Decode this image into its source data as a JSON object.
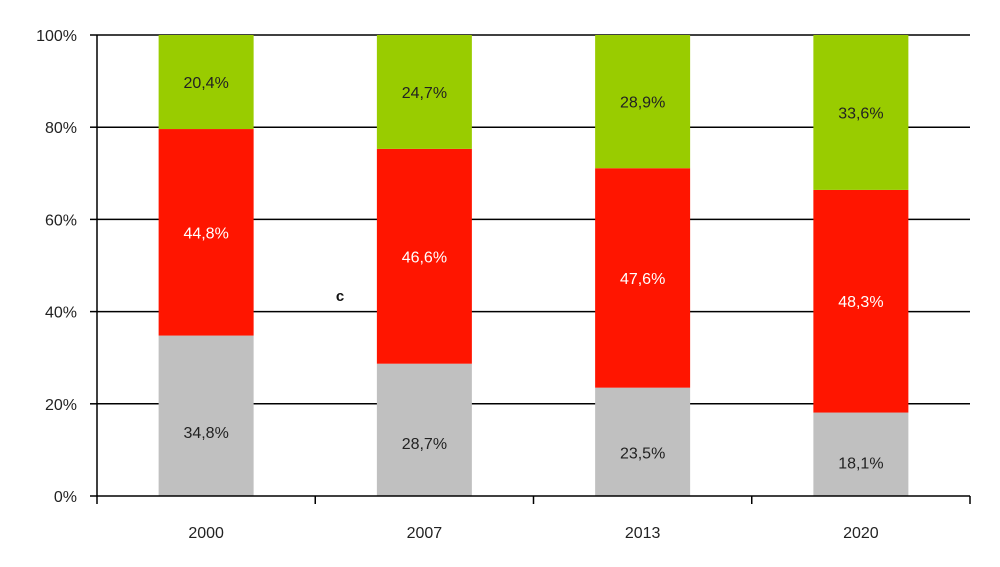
{
  "chart_data": {
    "type": "bar",
    "stacked": true,
    "percent_stacked": true,
    "categories": [
      "2000",
      "2007",
      "2013",
      "2020"
    ],
    "series": [
      {
        "values": [
          34.8,
          28.7,
          23.5,
          18.1
        ],
        "labels": [
          "34,8%",
          "28,7%",
          "23,5%",
          "18,1%"
        ],
        "color": "#c0c0c0",
        "label_color": "#222222"
      },
      {
        "values": [
          44.8,
          46.6,
          47.6,
          48.3
        ],
        "labels": [
          "44,8%",
          "46,6%",
          "47,6%",
          "48,3%"
        ],
        "color": "#ff1500",
        "label_color": "#ffffff"
      },
      {
        "values": [
          20.4,
          24.7,
          28.9,
          33.6
        ],
        "labels": [
          "20,4%",
          "24,7%",
          "28,9%",
          "33,6%"
        ],
        "color": "#99cc00",
        "label_color": "#222222"
      }
    ],
    "ylim": [
      0,
      100
    ],
    "yticks": [
      "0%",
      "20%",
      "40%",
      "60%",
      "80%",
      "100%"
    ],
    "grid": true,
    "annotation": "c",
    "title": "",
    "xlabel": "",
    "ylabel": ""
  }
}
